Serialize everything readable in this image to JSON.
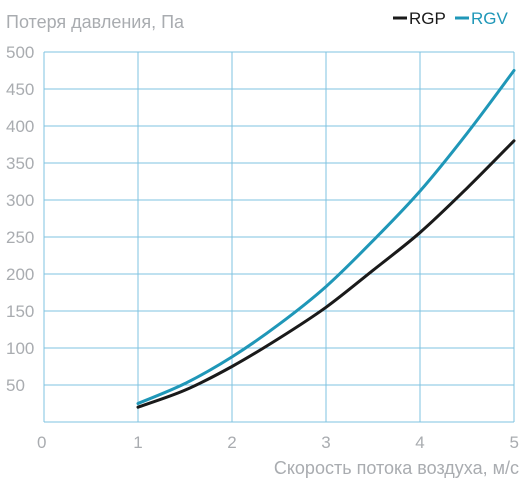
{
  "chart_data": {
    "type": "line",
    "title": "",
    "ylabel": "Потеря давления, Па",
    "xlabel": "Скорость потока воздуха, м/с",
    "xlim": [
      0,
      5
    ],
    "ylim": [
      0,
      500
    ],
    "x_ticks": [
      0,
      1,
      2,
      3,
      4,
      5
    ],
    "y_ticks": [
      50,
      100,
      150,
      200,
      250,
      300,
      350,
      400,
      450,
      500
    ],
    "grid": true,
    "legend_position": "top-right",
    "series": [
      {
        "name": "RGP",
        "color": "#1a1a1a",
        "x": [
          1,
          1.5,
          2,
          2.5,
          3,
          3.5,
          4,
          4.5,
          5
        ],
        "y": [
          20,
          43,
          75,
          113,
          155,
          205,
          256,
          316,
          380
        ]
      },
      {
        "name": "RGV",
        "color": "#1f97b8",
        "x": [
          1,
          1.5,
          2,
          2.5,
          3,
          3.5,
          4,
          4.5,
          5
        ],
        "y": [
          25,
          52,
          88,
          132,
          183,
          245,
          312,
          390,
          475
        ]
      }
    ]
  },
  "colors": {
    "grid": "#7fc3e0",
    "axis_text": "#a9acb0",
    "background": "#ffffff"
  }
}
